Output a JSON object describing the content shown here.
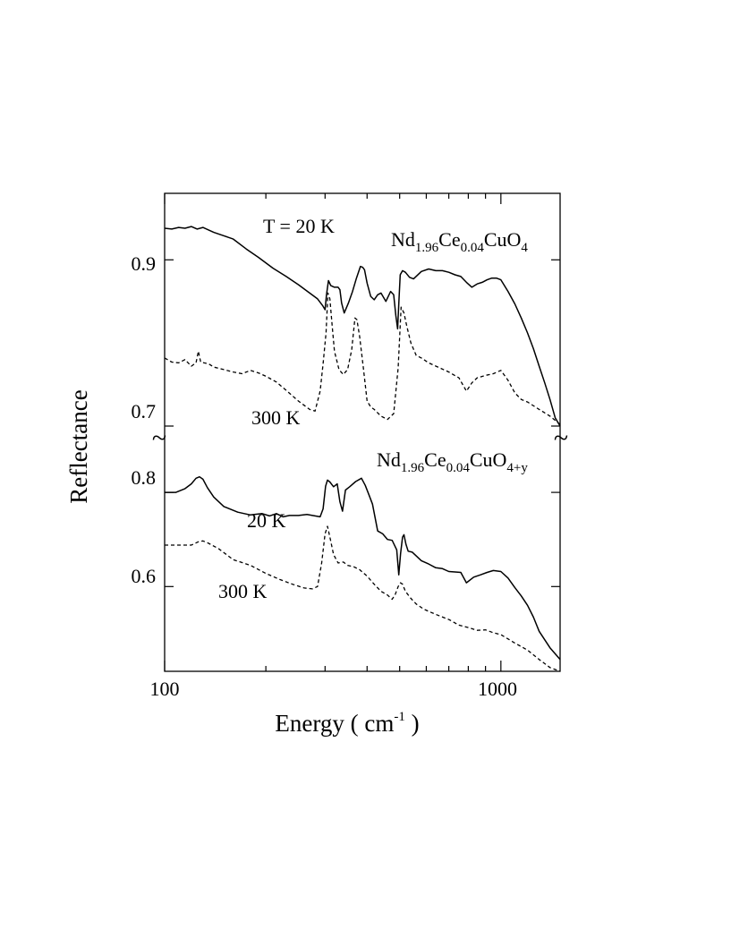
{
  "chart_data": {
    "type": "line",
    "ylabel": "Reflectance",
    "xlabel": "Energy ( cm",
    "xlabel_sup": "-1",
    "xlabel_close": " )",
    "x_scale": "log",
    "xlim": [
      100,
      1500
    ],
    "x_ticks": [
      "100",
      "1000"
    ],
    "break_symbol": "~",
    "panels": [
      {
        "name": "upper",
        "sample": {
          "base": "Nd",
          "s1": "1.96",
          "mid": "Ce",
          "s2": "0.04",
          "end": "CuO",
          "s3": "4"
        },
        "temperature_label": "T = 20 K",
        "ylim": [
          0.7,
          0.98
        ],
        "y_ticks": [
          {
            "value": 0.7,
            "label": "0.7"
          },
          {
            "value": 0.9,
            "label": "0.9"
          }
        ],
        "series": [
          {
            "label": "T = 20 K",
            "style": "solid",
            "x": [
              100,
              105,
              110,
              115,
              120,
              125,
              130,
              140,
              150,
              160,
              175,
              190,
              210,
              230,
              250,
              270,
              285,
              295,
              300,
              303,
              307,
              312,
              320,
              328,
              332,
              336,
              342,
              352,
              362,
              372,
              382,
              388,
              393,
              400,
              410,
              420,
              430,
              440,
              455,
              470,
              480,
              487,
              493,
              497,
              502,
              510,
              520,
              535,
              550,
              580,
              610,
              640,
              670,
              700,
              730,
              760,
              790,
              820,
              850,
              880,
              910,
              940,
              970,
              1000,
              1050,
              1100,
              1150,
              1200,
              1250,
              1300,
              1350,
              1400,
              1450,
              1500
            ],
            "y": [
              0.938,
              0.937,
              0.939,
              0.938,
              0.94,
              0.937,
              0.939,
              0.933,
              0.929,
              0.925,
              0.913,
              0.903,
              0.89,
              0.88,
              0.87,
              0.86,
              0.853,
              0.845,
              0.84,
              0.858,
              0.875,
              0.869,
              0.867,
              0.867,
              0.864,
              0.848,
              0.836,
              0.848,
              0.862,
              0.878,
              0.892,
              0.891,
              0.888,
              0.872,
              0.856,
              0.852,
              0.858,
              0.86,
              0.85,
              0.862,
              0.858,
              0.833,
              0.817,
              0.847,
              0.882,
              0.887,
              0.885,
              0.879,
              0.877,
              0.886,
              0.889,
              0.887,
              0.887,
              0.885,
              0.882,
              0.88,
              0.873,
              0.867,
              0.871,
              0.873,
              0.876,
              0.878,
              0.878,
              0.876,
              0.862,
              0.847,
              0.83,
              0.812,
              0.793,
              0.772,
              0.752,
              0.732,
              0.71,
              0.69
            ]
          },
          {
            "label": "300 K",
            "style": "dashed",
            "x": [
              100,
              105,
              110,
              115,
              120,
              124,
              126,
              128,
              131,
              135,
              140,
              150,
              160,
              170,
              180,
              190,
              200,
              215,
              230,
              250,
              270,
              280,
              290,
              296,
              302,
              306,
              310,
              315,
              320,
              330,
              340,
              350,
              360,
              368,
              373,
              380,
              390,
              400,
              410,
              420,
              440,
              460,
              480,
              495,
              505,
              515,
              525,
              540,
              560,
              580,
              610,
              650,
              700,
              750,
              790,
              820,
              850,
              900,
              950,
              1000,
              1050,
              1100,
              1150,
              1200,
              1300,
              1400,
              1500
            ],
            "y": [
              0.782,
              0.777,
              0.776,
              0.78,
              0.772,
              0.776,
              0.79,
              0.777,
              0.776,
              0.775,
              0.771,
              0.768,
              0.765,
              0.763,
              0.767,
              0.764,
              0.76,
              0.753,
              0.743,
              0.73,
              0.72,
              0.718,
              0.742,
              0.775,
              0.812,
              0.86,
              0.853,
              0.82,
              0.79,
              0.768,
              0.762,
              0.768,
              0.792,
              0.83,
              0.828,
              0.808,
              0.77,
              0.73,
              0.723,
              0.72,
              0.712,
              0.708,
              0.715,
              0.77,
              0.843,
              0.836,
              0.82,
              0.8,
              0.785,
              0.782,
              0.776,
              0.771,
              0.765,
              0.758,
              0.742,
              0.752,
              0.758,
              0.761,
              0.763,
              0.767,
              0.755,
              0.74,
              0.732,
              0.729,
              0.72,
              0.712,
              0.702
            ]
          }
        ],
        "annotations": [
          {
            "text": "300 K"
          }
        ]
      },
      {
        "name": "lower",
        "sample": {
          "base": "Nd",
          "s1": "1.96",
          "mid": "Ce",
          "s2": "0.04",
          "end": "CuO",
          "s3": "4+y"
        },
        "ylim": [
          0.42,
          0.88
        ],
        "y_ticks": [
          {
            "value": 0.6,
            "label": "0.6"
          },
          {
            "value": 0.8,
            "label": "0.8"
          }
        ],
        "series": [
          {
            "label": "20 K",
            "style": "solid",
            "x": [
              100,
              108,
              115,
              120,
              124,
              127,
              130,
              134,
              140,
              150,
              165,
              180,
              195,
              205,
              215,
              225,
              235,
              250,
              265,
              280,
              290,
              296,
              301,
              305,
              310,
              318,
              326,
              332,
              338,
              345,
              355,
              370,
              385,
              395,
              405,
              415,
              430,
              445,
              460,
              475,
              490,
              497,
              503,
              510,
              515,
              522,
              530,
              545,
              560,
              580,
              610,
              640,
              670,
              700,
              730,
              760,
              790,
              830,
              870,
              910,
              950,
              1000,
              1050,
              1100,
              1150,
              1200,
              1250,
              1300,
              1400,
              1500
            ],
            "y": [
              0.8,
              0.8,
              0.808,
              0.818,
              0.83,
              0.833,
              0.828,
              0.81,
              0.79,
              0.77,
              0.758,
              0.752,
              0.755,
              0.75,
              0.755,
              0.748,
              0.751,
              0.751,
              0.753,
              0.75,
              0.748,
              0.765,
              0.813,
              0.826,
              0.822,
              0.812,
              0.818,
              0.78,
              0.76,
              0.805,
              0.812,
              0.823,
              0.83,
              0.815,
              0.795,
              0.775,
              0.718,
              0.712,
              0.7,
              0.698,
              0.678,
              0.625,
              0.67,
              0.705,
              0.71,
              0.69,
              0.675,
              0.673,
              0.665,
              0.655,
              0.648,
              0.64,
              0.638,
              0.632,
              0.631,
              0.63,
              0.608,
              0.62,
              0.625,
              0.63,
              0.634,
              0.632,
              0.618,
              0.598,
              0.58,
              0.56,
              0.535,
              0.505,
              0.47,
              0.445
            ]
          },
          {
            "label": "300 K",
            "style": "dashed",
            "x": [
              100,
              110,
              120,
              126,
              130,
              135,
              145,
              160,
              180,
              200,
              220,
              240,
              260,
              275,
              285,
              293,
              300,
              305,
              310,
              318,
              328,
              340,
              350,
              365,
              380,
              400,
              420,
              440,
              460,
              475,
              485,
              495,
              503,
              510,
              520,
              540,
              560,
              590,
              620,
              660,
              700,
              750,
              800,
              850,
              900,
              950,
              1000,
              1100,
              1200,
              1300,
              1400,
              1500
            ],
            "y": [
              0.688,
              0.688,
              0.688,
              0.695,
              0.697,
              0.692,
              0.68,
              0.657,
              0.645,
              0.628,
              0.615,
              0.605,
              0.597,
              0.595,
              0.6,
              0.65,
              0.712,
              0.728,
              0.705,
              0.668,
              0.65,
              0.652,
              0.645,
              0.642,
              0.636,
              0.622,
              0.605,
              0.59,
              0.582,
              0.573,
              0.583,
              0.6,
              0.608,
              0.605,
              0.59,
              0.575,
              0.563,
              0.552,
              0.545,
              0.537,
              0.53,
              0.518,
              0.513,
              0.507,
              0.508,
              0.502,
              0.498,
              0.48,
              0.465,
              0.445,
              0.428,
              0.41
            ]
          }
        ],
        "annotations": [
          {
            "text": "20 K"
          },
          {
            "text": "300 K"
          }
        ]
      }
    ]
  }
}
